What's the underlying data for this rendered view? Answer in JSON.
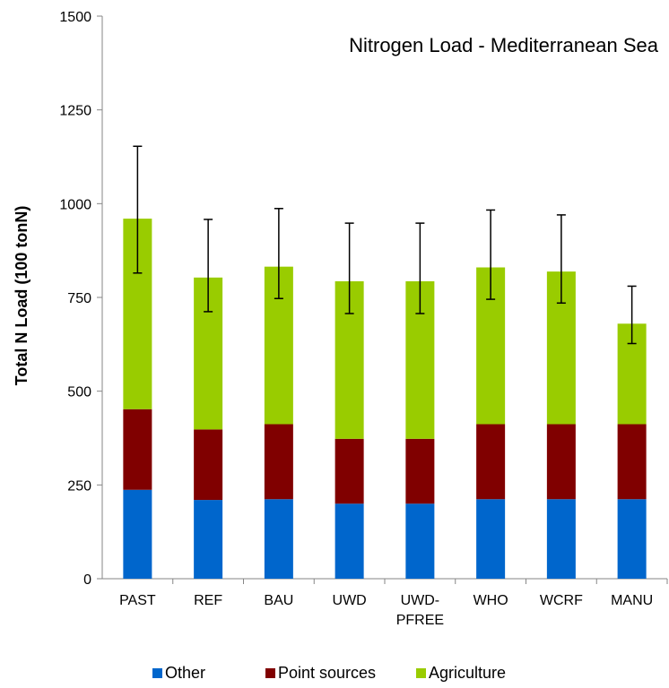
{
  "chart_data": {
    "type": "bar",
    "stacked": true,
    "title": "Nitrogen Load - Mediterranean Sea",
    "xlabel": "",
    "ylabel": "Total N Load (100 tonN)",
    "ylim": [
      0,
      1500
    ],
    "yticks": [
      0,
      250,
      500,
      750,
      1000,
      1250,
      1500
    ],
    "grid": false,
    "legend_position": "bottom",
    "categories": [
      [
        "PAST"
      ],
      [
        "REF"
      ],
      [
        "BAU"
      ],
      [
        "UWD"
      ],
      [
        "UWD-",
        "PFREE"
      ],
      [
        "WHO"
      ],
      [
        "WCRF"
      ],
      [
        "MANU"
      ]
    ],
    "series": [
      {
        "name": "Other",
        "color": "#0066CC",
        "values": [
          237,
          210,
          212,
          200,
          200,
          212,
          212,
          212
        ]
      },
      {
        "name": "Point sources",
        "color": "#800000",
        "values": [
          215,
          188,
          200,
          173,
          173,
          200,
          200,
          200
        ]
      },
      {
        "name": "Agriculture",
        "color": "#99CC00",
        "values": [
          508,
          405,
          420,
          420,
          420,
          418,
          407,
          268
        ]
      }
    ],
    "error_bars": [
      {
        "low": 815,
        "high": 1153
      },
      {
        "low": 712,
        "high": 958
      },
      {
        "low": 747,
        "high": 987
      },
      {
        "low": 707,
        "high": 948
      },
      {
        "low": 707,
        "high": 948
      },
      {
        "low": 745,
        "high": 983
      },
      {
        "low": 735,
        "high": 970
      },
      {
        "low": 627,
        "high": 780
      }
    ]
  }
}
